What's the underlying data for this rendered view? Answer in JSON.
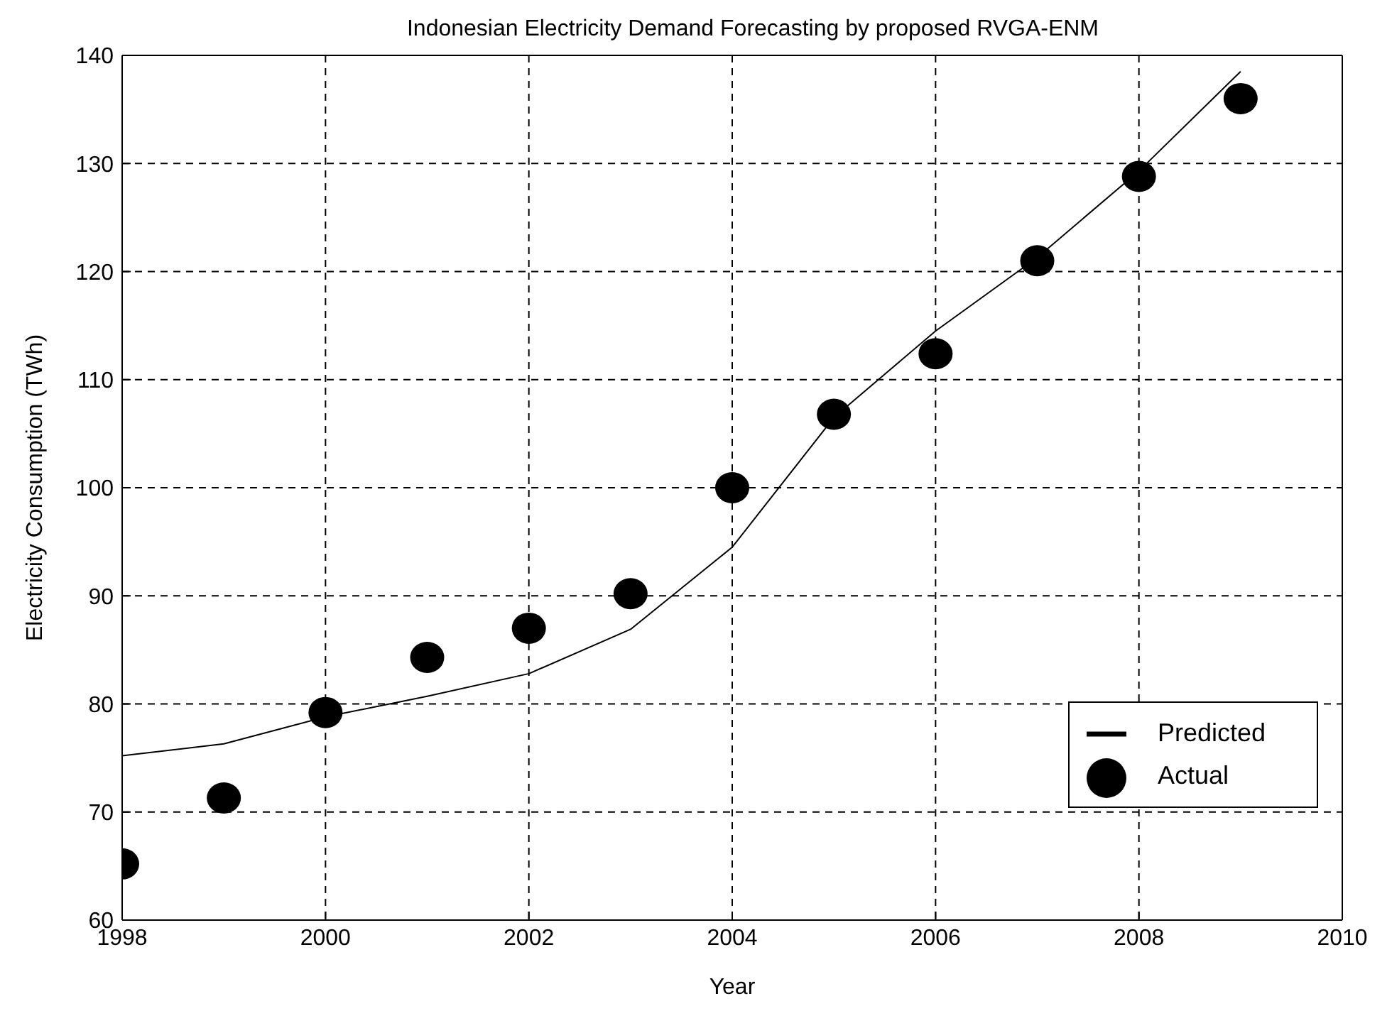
{
  "chart_data": {
    "type": "line",
    "title": "Indonesian Electricity Demand Forecasting by proposed RVGA-ENM",
    "xlabel": "Year",
    "ylabel": "Electricity Consumption (TWh)",
    "x": [
      1998,
      1999,
      2000,
      2001,
      2002,
      2003,
      2004,
      2005,
      2006,
      2007,
      2008,
      2009
    ],
    "series": [
      {
        "name": "Predicted",
        "color": "#000000",
        "marker": "none",
        "values": [
          75.2,
          76.3,
          78.8,
          80.7,
          82.8,
          86.9,
          94.5,
          106.5,
          114.5,
          121.3,
          129.3,
          138.5
        ]
      },
      {
        "name": "Actual",
        "type": "scatter",
        "color": "#000000",
        "marker": "circle",
        "values": [
          65.2,
          71.3,
          79.2,
          84.3,
          87.0,
          90.2,
          100.0,
          106.8,
          112.4,
          121.0,
          128.8,
          136.0
        ]
      }
    ],
    "xlim": [
      1998,
      2010
    ],
    "xticks": [
      1998,
      2000,
      2002,
      2004,
      2006,
      2008,
      2010
    ],
    "ylim": [
      60,
      140
    ],
    "yticks": [
      60,
      70,
      80,
      90,
      100,
      110,
      120,
      130,
      140
    ],
    "grid": true,
    "legend": "bottom right",
    "line_style": "solid"
  }
}
